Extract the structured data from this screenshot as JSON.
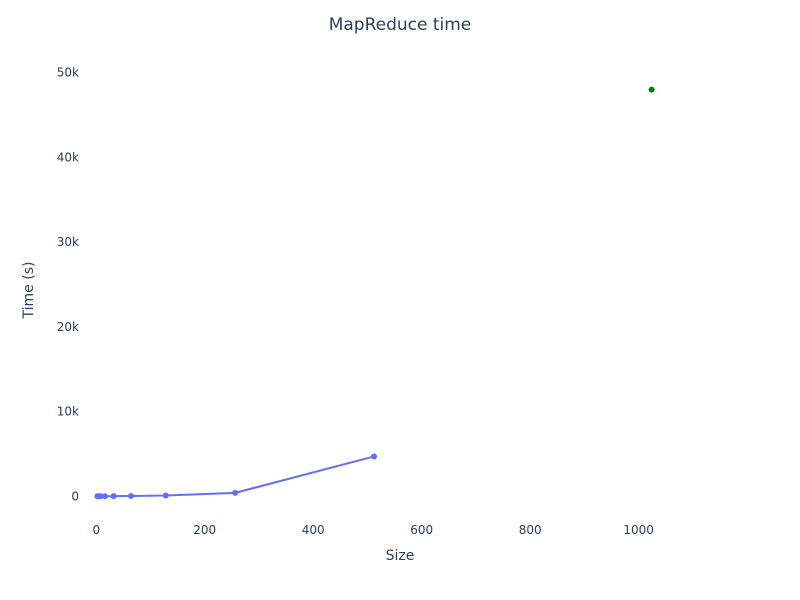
{
  "chart_data": {
    "type": "scatter",
    "title": "MapReduce time",
    "xlabel": "Size",
    "ylabel": "Time (s)",
    "xlim": [
      -30,
      1150
    ],
    "ylim": [
      -2800,
      51500
    ],
    "x_ticks": [
      0,
      200,
      400,
      600,
      800,
      1000
    ],
    "x_tick_labels": [
      "0",
      "200",
      "400",
      "600",
      "800",
      "1000"
    ],
    "y_ticks": [
      0,
      10000,
      20000,
      30000,
      40000,
      50000
    ],
    "y_tick_labels": [
      "0",
      "10k",
      "20k",
      "30k",
      "40k",
      "50k"
    ],
    "grid": false,
    "legend": "none",
    "series": [
      {
        "mode": "lines+markers",
        "color": "#636efa",
        "x": [
          2,
          4,
          8,
          16,
          32,
          64,
          128,
          256,
          512
        ],
        "y": [
          1,
          2,
          4,
          8,
          20,
          40,
          90,
          400,
          4700
        ]
      },
      {
        "mode": "markers",
        "color": "#008000",
        "x": [
          1024
        ],
        "y": [
          48000
        ]
      }
    ]
  }
}
